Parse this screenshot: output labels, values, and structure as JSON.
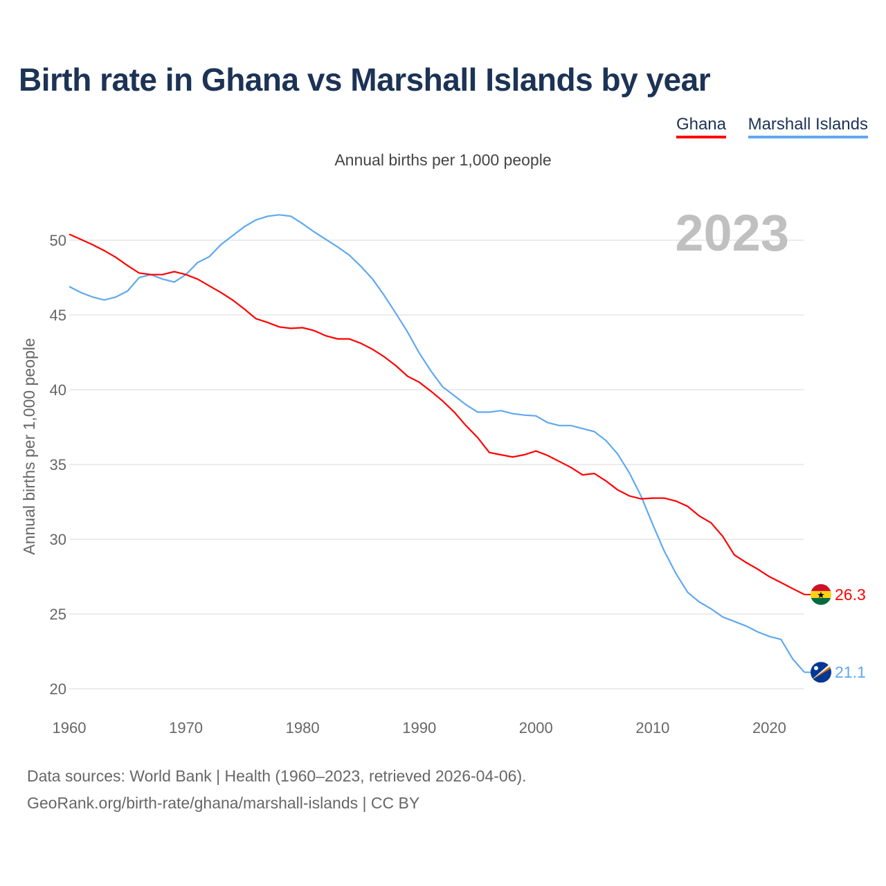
{
  "title": "Birth rate in Ghana vs Marshall Islands by year",
  "legend": [
    {
      "label": "Ghana",
      "color": "#ff0000"
    },
    {
      "label": "Marshall Islands",
      "color": "#5fa8f0"
    }
  ],
  "subtitle": "Annual births per 1,000 people",
  "year_watermark": "2023",
  "footer": {
    "line1": "Data sources: World Bank | Health (1960–2023, retrieved 2026-04-06).",
    "line2": "GeoRank.org/birth-rate/ghana/marshall-islands | CC BY"
  },
  "chart_data": {
    "type": "line",
    "title": "Birth rate in Ghana vs Marshall Islands by year",
    "xlabel": "",
    "ylabel": "Annual births per 1,000 people",
    "xlim": [
      1960,
      2023
    ],
    "ylim": [
      20,
      52
    ],
    "xticks": [
      1960,
      1970,
      1980,
      1990,
      2000,
      2010,
      2020
    ],
    "yticks": [
      20,
      25,
      30,
      35,
      40,
      45,
      50
    ],
    "grid": true,
    "legend_position": "top-right",
    "x_start": 1960,
    "series": [
      {
        "name": "Ghana",
        "color": "#ff0000",
        "end_label": "26.3",
        "flag": "ghana-flag",
        "values": [
          50.4,
          50.05,
          49.7,
          49.3,
          48.85,
          48.3,
          47.8,
          47.7,
          47.7,
          47.9,
          47.7,
          47.4,
          46.95,
          46.5,
          46.0,
          45.4,
          44.75,
          44.5,
          44.2,
          44.1,
          44.15,
          43.95,
          43.6,
          43.4,
          43.4,
          43.1,
          42.7,
          42.2,
          41.6,
          40.9,
          40.5,
          39.9,
          39.25,
          38.5,
          37.6,
          36.8,
          35.8,
          35.65,
          35.5,
          35.65,
          35.9,
          35.6,
          35.2,
          34.8,
          34.3,
          34.4,
          33.9,
          33.3,
          32.9,
          32.7,
          32.75,
          32.75,
          32.55,
          32.2,
          31.55,
          31.1,
          30.2,
          28.95,
          28.45,
          28.0,
          27.5,
          27.1,
          26.7,
          26.3
        ]
      },
      {
        "name": "Marshall Islands",
        "color": "#5fa8f0",
        "end_label": "21.1",
        "flag": "marshall-islands-flag",
        "values": [
          46.9,
          46.5,
          46.2,
          46.0,
          46.2,
          46.6,
          47.5,
          47.7,
          47.4,
          47.2,
          47.7,
          48.5,
          48.9,
          49.7,
          50.3,
          50.9,
          51.35,
          51.6,
          51.7,
          51.6,
          51.1,
          50.55,
          50.05,
          49.55,
          49.0,
          48.25,
          47.4,
          46.3,
          45.1,
          43.85,
          42.45,
          41.25,
          40.2,
          39.6,
          39.0,
          38.5,
          38.5,
          38.6,
          38.4,
          38.3,
          38.25,
          37.8,
          37.6,
          37.6,
          37.4,
          37.2,
          36.6,
          35.7,
          34.45,
          32.9,
          31.0,
          29.2,
          27.7,
          26.45,
          25.8,
          25.35,
          24.8,
          24.5,
          24.2,
          23.8,
          23.5,
          23.3,
          22.0,
          21.1
        ]
      }
    ]
  }
}
